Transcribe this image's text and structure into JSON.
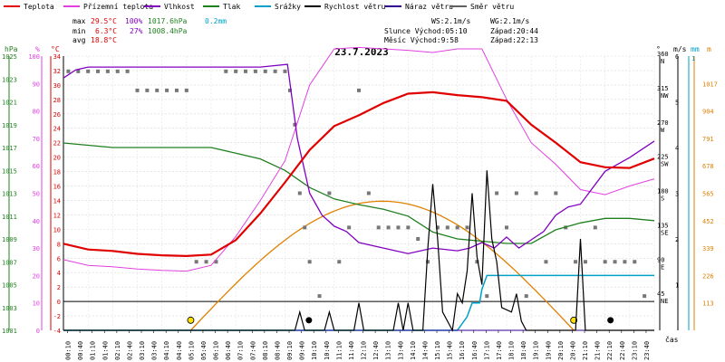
{
  "chart_data": {
    "type": "line",
    "title": "23.7.2023",
    "legend": [
      {
        "label": "Teplota",
        "color": "#e00000"
      },
      {
        "label": "Přízemní teplota",
        "color": "#e040e0"
      },
      {
        "label": "Vlhkost",
        "color": "#8000c0"
      },
      {
        "label": "Tlak",
        "color": "#208020"
      },
      {
        "label": "Srážky",
        "color": "#00a0c8"
      },
      {
        "label": "Rychlost větru",
        "color": "#000000"
      },
      {
        "label": "Náraz větru",
        "color": "#300090"
      },
      {
        "label": "Směr větru",
        "color": "#606060"
      }
    ],
    "stats": {
      "max_label": "max",
      "max_temp": "29.5°C",
      "max_hum": "100%",
      "max_press": "1017.6hPa",
      "max_rain": "0.2mm",
      "min_label": "min",
      "min_temp": "6.3°C",
      "min_hum": "27%",
      "min_press": "1008.4hPa",
      "avg_label": "avg",
      "avg_temp": "18.8°C"
    },
    "info": {
      "ws": "WS:2.1m/s",
      "wg": "WG:2.1m/s",
      "sun": "Slunce Východ:05:10",
      "sun_set": "Západ:20:44",
      "moon": "Měsíc  Východ:9:58",
      "moon_set": "Západ:22:13"
    },
    "axes": {
      "hpa_unit": "hPa",
      "hum_unit": "%",
      "temp_unit": "°C",
      "dir_unit": "°",
      "wind_unit": "m/s",
      "rain_unit": "mm",
      "rain_unit2": "m",
      "time_label": "čas",
      "hpa_ticks": [
        "1001",
        "1003",
        "1005",
        "1007",
        "1009",
        "1011",
        "1013",
        "1015",
        "1017",
        "1019",
        "1021",
        "1023",
        "1025"
      ],
      "hum_ticks": [
        "0",
        "10",
        "20",
        "30",
        "40",
        "50",
        "60",
        "70",
        "80",
        "90",
        "100"
      ],
      "temp_ticks": [
        "-4",
        "-2",
        "0",
        "2",
        "4",
        "6",
        "8",
        "10",
        "12",
        "14",
        "16",
        "18",
        "20",
        "22",
        "24",
        "26",
        "28",
        "30",
        "32",
        "34"
      ],
      "dir_ticks": [
        {
          "deg": "360",
          "dir": "N"
        },
        {
          "deg": "315",
          "dir": "NW"
        },
        {
          "deg": "270",
          "dir": "W"
        },
        {
          "deg": "225",
          "dir": "SW"
        },
        {
          "deg": "180",
          "dir": "S"
        },
        {
          "deg": "135",
          "dir": "SE"
        },
        {
          "deg": "90",
          "dir": "E"
        },
        {
          "deg": "45",
          "dir": "NE"
        }
      ],
      "wind_ticks": [
        "1",
        "2",
        "3",
        "4",
        "5",
        "6"
      ],
      "rain_ticks": [
        "1017",
        "904",
        "791",
        "678",
        "565",
        "452",
        "339",
        "226",
        "113"
      ],
      "rain_ticks_top": [
        "1"
      ],
      "time_ticks": [
        "00:10",
        "00:40",
        "01:10",
        "01:40",
        "02:10",
        "02:40",
        "03:10",
        "03:40",
        "04:10",
        "04:40",
        "05:10",
        "05:40",
        "06:10",
        "06:40",
        "07:10",
        "07:40",
        "08:10",
        "08:40",
        "09:10",
        "09:40",
        "10:10",
        "10:40",
        "11:10",
        "11:40",
        "12:10",
        "12:40",
        "13:10",
        "13:40",
        "14:10",
        "14:40",
        "15:10",
        "15:40",
        "16:10",
        "16:40",
        "17:10",
        "17:40",
        "18:10",
        "18:40",
        "19:10",
        "19:40",
        "20:10",
        "20:40",
        "21:10",
        "21:40",
        "22:10",
        "22:40",
        "23:10",
        "23:40"
      ]
    },
    "series": [
      {
        "name": "Teplota",
        "unit": "°C",
        "x": [
          0,
          1,
          2,
          3,
          4,
          5,
          6,
          7,
          8,
          9,
          10,
          11,
          12,
          13,
          14,
          15,
          16,
          17,
          18,
          19,
          20,
          21,
          22,
          23,
          24
        ],
        "values": [
          8.0,
          7.2,
          7.0,
          6.6,
          6.4,
          6.3,
          6.5,
          8.5,
          12.2,
          16.5,
          21.0,
          24.3,
          25.8,
          27.5,
          28.8,
          29.0,
          28.6,
          28.3,
          27.8,
          24.5,
          22.0,
          19.3,
          18.6,
          18.5,
          19.8
        ]
      },
      {
        "name": "Přízemní teplota",
        "unit": "°C",
        "x": [
          0,
          1,
          2,
          3,
          4,
          5,
          6,
          7,
          8,
          9,
          10,
          11,
          12,
          13,
          14,
          15,
          16,
          17,
          18,
          19,
          20,
          21,
          22,
          23,
          24
        ],
        "values": [
          5.8,
          5.0,
          4.8,
          4.5,
          4.3,
          4.2,
          5.0,
          9.0,
          14.0,
          19.5,
          30.0,
          35.0,
          35.2,
          35.0,
          34.8,
          34.5,
          35.0,
          35.0,
          28.0,
          22.0,
          19.0,
          15.5,
          14.8,
          16.0,
          17.0
        ]
      },
      {
        "name": "Vlhkost",
        "unit": "%",
        "x": [
          0,
          0.5,
          1,
          2,
          3,
          4,
          5,
          6,
          7,
          8,
          9.1,
          9.5,
          10,
          10.5,
          11,
          11.5,
          12,
          13,
          14,
          15,
          16,
          16.5,
          17,
          17.5,
          18,
          18.5,
          19,
          19.5,
          20,
          20.5,
          21,
          22,
          23,
          24
        ],
        "values": [
          92,
          95,
          96,
          96,
          96,
          96,
          96,
          96,
          96,
          96,
          97,
          70,
          50,
          42,
          38,
          36,
          32,
          30,
          28,
          30,
          29,
          30,
          32,
          30,
          34,
          30,
          33,
          36,
          42,
          45,
          46,
          58,
          63,
          69
        ]
      },
      {
        "name": "Tlak",
        "unit": "hPa",
        "x": [
          0,
          1,
          2,
          3,
          4,
          5,
          6,
          7,
          8,
          9,
          10,
          11,
          12,
          13,
          14,
          15,
          16,
          17,
          18,
          19,
          20,
          21,
          22,
          23,
          24
        ],
        "values": [
          1017.4,
          1017.2,
          1017.0,
          1017.0,
          1017.0,
          1017.0,
          1017.0,
          1016.5,
          1016.0,
          1015.0,
          1013.5,
          1012.5,
          1012.0,
          1011.6,
          1011.0,
          1009.6,
          1009.0,
          1008.8,
          1008.6,
          1008.6,
          1009.8,
          1010.4,
          1010.8,
          1010.8,
          1010.6
        ]
      },
      {
        "name": "Srážky",
        "unit": "mm",
        "x": [
          0,
          15.0,
          16.0,
          16.4,
          16.6,
          16.9,
          17.0,
          17.2,
          24
        ],
        "values": [
          0,
          0,
          0,
          0.05,
          0.1,
          0.1,
          0.15,
          0.2,
          0.2
        ]
      },
      {
        "name": "Rychlost větru",
        "unit": "m/s",
        "x": [
          0,
          9.4,
          9.6,
          9.8,
          10.6,
          10.8,
          11.0,
          11.8,
          12.0,
          12.2,
          13.4,
          13.6,
          13.8,
          14.0,
          14.2,
          14.6,
          14.8,
          15.0,
          15.2,
          15.4,
          15.8,
          16.0,
          16.2,
          16.4,
          16.6,
          16.8,
          17.0,
          17.2,
          17.4,
          17.6,
          17.8,
          18.2,
          18.4,
          18.6,
          18.8,
          20.8,
          21.0,
          21.2,
          24
        ],
        "values": [
          0,
          0,
          0.4,
          0,
          0,
          0.4,
          0,
          0,
          0.6,
          0,
          0,
          0.6,
          0,
          0.6,
          0,
          0,
          1.8,
          3.2,
          2.0,
          0.4,
          0,
          0.8,
          0.6,
          1.3,
          3.0,
          1.6,
          1.0,
          3.5,
          2.0,
          1.5,
          0.5,
          0.4,
          0.8,
          0.2,
          0,
          0,
          2.0,
          0,
          0
        ]
      },
      {
        "name": "Náraz větru",
        "unit": "m/s",
        "x": [
          0,
          24
        ],
        "values": [
          0,
          0
        ]
      },
      {
        "name": "Směr větru",
        "unit": "°",
        "x": [
          0.2,
          0.6,
          1.0,
          1.4,
          1.8,
          2.2,
          2.6,
          3.0,
          3.4,
          3.8,
          4.2,
          4.6,
          5.0,
          5.4,
          5.8,
          6.2,
          6.6,
          7.0,
          7.4,
          7.8,
          8.2,
          8.6,
          9.0,
          9.2,
          9.4,
          9.6,
          9.8,
          10.0,
          10.4,
          10.8,
          11.2,
          11.6,
          12.0,
          12.4,
          12.8,
          13.2,
          13.6,
          14.0,
          14.4,
          14.8,
          15.2,
          15.6,
          16.0,
          16.4,
          16.8,
          17.2,
          17.6,
          18.0,
          18.4,
          18.8,
          19.2,
          19.6,
          20.0,
          20.4,
          20.8,
          21.2,
          21.6,
          22.0,
          22.4,
          22.8,
          23.2,
          23.6
        ],
        "values": [
          340,
          340,
          340,
          340,
          340,
          340,
          340,
          315,
          315,
          315,
          315,
          315,
          315,
          90,
          90,
          90,
          340,
          340,
          340,
          340,
          340,
          340,
          340,
          315,
          270,
          180,
          135,
          90,
          45,
          180,
          90,
          135,
          315,
          180,
          135,
          135,
          135,
          135,
          120,
          90,
          135,
          135,
          135,
          135,
          90,
          45,
          180,
          135,
          180,
          45,
          180,
          90,
          180,
          135,
          90,
          90,
          135,
          90,
          90,
          90,
          90,
          45
        ]
      }
    ],
    "sun": {
      "rise_hour": 5.17,
      "set_hour": 20.73,
      "max_temp_equiv": 13.9
    },
    "moon": {
      "rise_hour": 9.97,
      "set_hour": 22.22
    },
    "ranges": {
      "temp": [
        -4,
        34
      ],
      "hum": [
        0,
        100
      ],
      "hpa": [
        1001,
        1025
      ],
      "dir": [
        0,
        360
      ],
      "wind": [
        0,
        6
      ],
      "rain": [
        0,
        1
      ],
      "hours": [
        0,
        24
      ]
    }
  }
}
